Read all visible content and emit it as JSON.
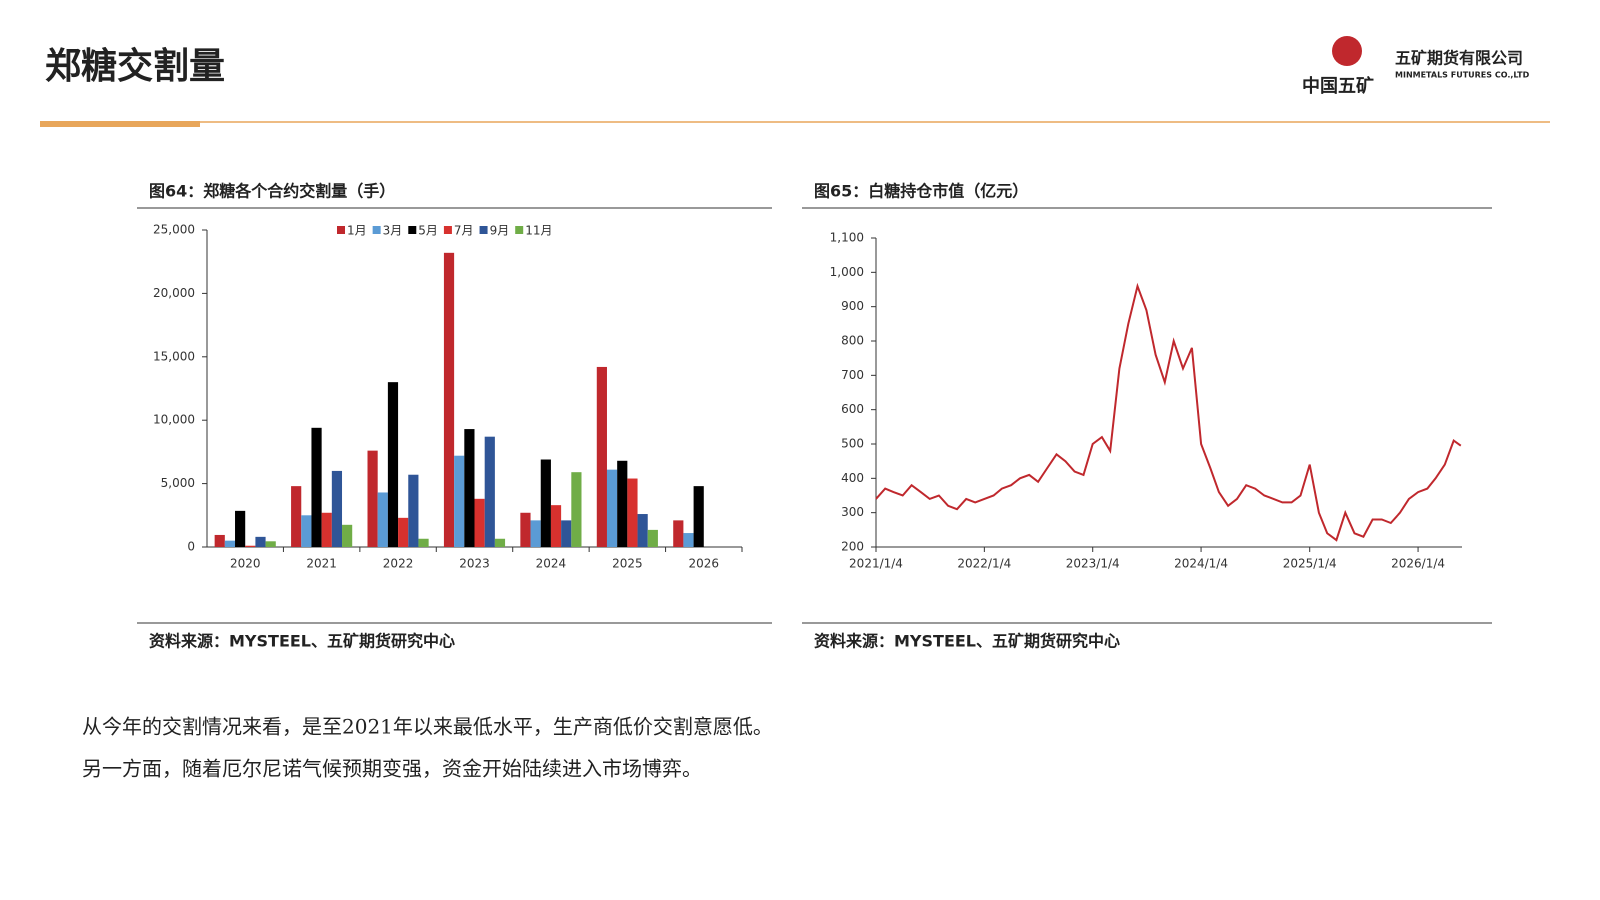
{
  "header": {
    "title": "郑糖交割量",
    "logo_text": "中国五矿",
    "company": "五矿期货有限公司",
    "company_en": "MINMETALS FUTURES CO.,LTD"
  },
  "chart_data": [
    {
      "type": "bar",
      "title": "图64：郑糖各个合约交割量（手）",
      "source": "资料来源：MYSTEEL、五矿期货研究中心",
      "categories": [
        "2020",
        "2021",
        "2022",
        "2023",
        "2024",
        "2025",
        "2026"
      ],
      "series": [
        {
          "name": "1月",
          "color": "#c0282d",
          "values": [
            950,
            4800,
            7600,
            23200,
            2700,
            14200,
            2100
          ]
        },
        {
          "name": "3月",
          "color": "#5b9bd5",
          "values": [
            500,
            2500,
            4300,
            7200,
            2100,
            6100,
            1100
          ]
        },
        {
          "name": "5月",
          "color": "#000000",
          "values": [
            2850,
            9400,
            13000,
            9300,
            6900,
            6800,
            4800
          ]
        },
        {
          "name": "7月",
          "color": "#d7312e",
          "values": [
            100,
            2700,
            2300,
            3800,
            3300,
            5400,
            null
          ]
        },
        {
          "name": "9月",
          "color": "#2f5597",
          "values": [
            800,
            6000,
            5700,
            8700,
            2100,
            2600,
            null
          ]
        },
        {
          "name": "11月",
          "color": "#70ad47",
          "values": [
            450,
            1750,
            650,
            650,
            5900,
            1350,
            null
          ]
        }
      ],
      "ylim": [
        0,
        25000
      ],
      "yticks": [
        0,
        {
          "value": 5000,
          "label": "5,000"
        },
        {
          "value": 10000,
          "label": "10,000"
        },
        {
          "value": 15000,
          "label": "15,000"
        },
        {
          "value": 20000,
          "label": "20,000"
        },
        {
          "value": 25000,
          "label": "25,000"
        }
      ]
    },
    {
      "type": "line",
      "title": "图65：白糖持仓市值（亿元）",
      "source": "资料来源：MYSTEEL、五矿期货研究中心",
      "color": "#c0282d",
      "x": [
        "2021/1/4",
        "2021/2/4",
        "2021/3/4",
        "2021/4/4",
        "2021/5/4",
        "2021/6/4",
        "2021/7/4",
        "2021/8/4",
        "2021/9/4",
        "2021/10/4",
        "2021/11/4",
        "2021/12/4",
        "2022/1/4",
        "2022/2/4",
        "2022/3/4",
        "2022/4/4",
        "2022/5/4",
        "2022/6/4",
        "2022/7/4",
        "2022/8/4",
        "2022/9/4",
        "2022/10/4",
        "2022/11/4",
        "2022/12/4",
        "2023/1/4",
        "2023/2/4",
        "2023/3/4",
        "2023/4/4",
        "2023/5/4",
        "2023/6/4",
        "2023/7/4",
        "2023/8/4",
        "2023/9/4",
        "2023/10/4",
        "2023/11/4",
        "2023/12/4",
        "2024/1/4",
        "2024/2/4",
        "2024/3/4",
        "2024/4/4",
        "2024/5/4",
        "2024/6/4",
        "2024/7/4",
        "2024/8/4",
        "2024/9/4",
        "2024/10/4",
        "2024/11/4",
        "2024/12/4",
        "2025/1/4",
        "2025/2/4",
        "2025/3/4",
        "2025/4/4",
        "2025/5/4",
        "2025/6/4",
        "2025/7/4",
        "2025/8/4",
        "2025/9/4",
        "2025/10/4",
        "2025/11/4",
        "2025/12/4",
        "2026/1/4",
        "2026/2/4",
        "2026/3/4",
        "2026/4/4",
        "2026/5/4",
        "2026/5/28"
      ],
      "values": [
        340,
        370,
        360,
        350,
        380,
        360,
        340,
        350,
        320,
        310,
        340,
        330,
        340,
        350,
        370,
        380,
        400,
        410,
        390,
        430,
        470,
        450,
        420,
        410,
        500,
        520,
        480,
        720,
        850,
        960,
        890,
        760,
        680,
        800,
        720,
        780,
        500,
        430,
        360,
        320,
        340,
        380,
        370,
        350,
        340,
        330,
        330,
        350,
        440,
        300,
        240,
        220,
        300,
        240,
        230,
        280,
        280,
        270,
        300,
        340,
        360,
        370,
        400,
        440,
        510,
        495
      ],
      "xlim": [
        "2021/1/4",
        "2026/6/1"
      ],
      "xticks": [
        "2021/1/4",
        "2022/1/4",
        "2023/1/4",
        "2024/1/4",
        "2025/1/4",
        "2026/1/4"
      ],
      "ylim": [
        200,
        1100
      ],
      "yticks": [
        200,
        300,
        400,
        500,
        600,
        700,
        800,
        900,
        {
          "value": 1000,
          "label": "1,000"
        },
        {
          "value": 1100,
          "label": "1,100"
        }
      ]
    }
  ],
  "text": [
    "从今年的交割情况来看，是至2021年以来最低水平，生产商低价交割意愿低。",
    "另一方面，随着厄尔尼诺气候预期变强，资金开始陆续进入市场博弈。"
  ]
}
